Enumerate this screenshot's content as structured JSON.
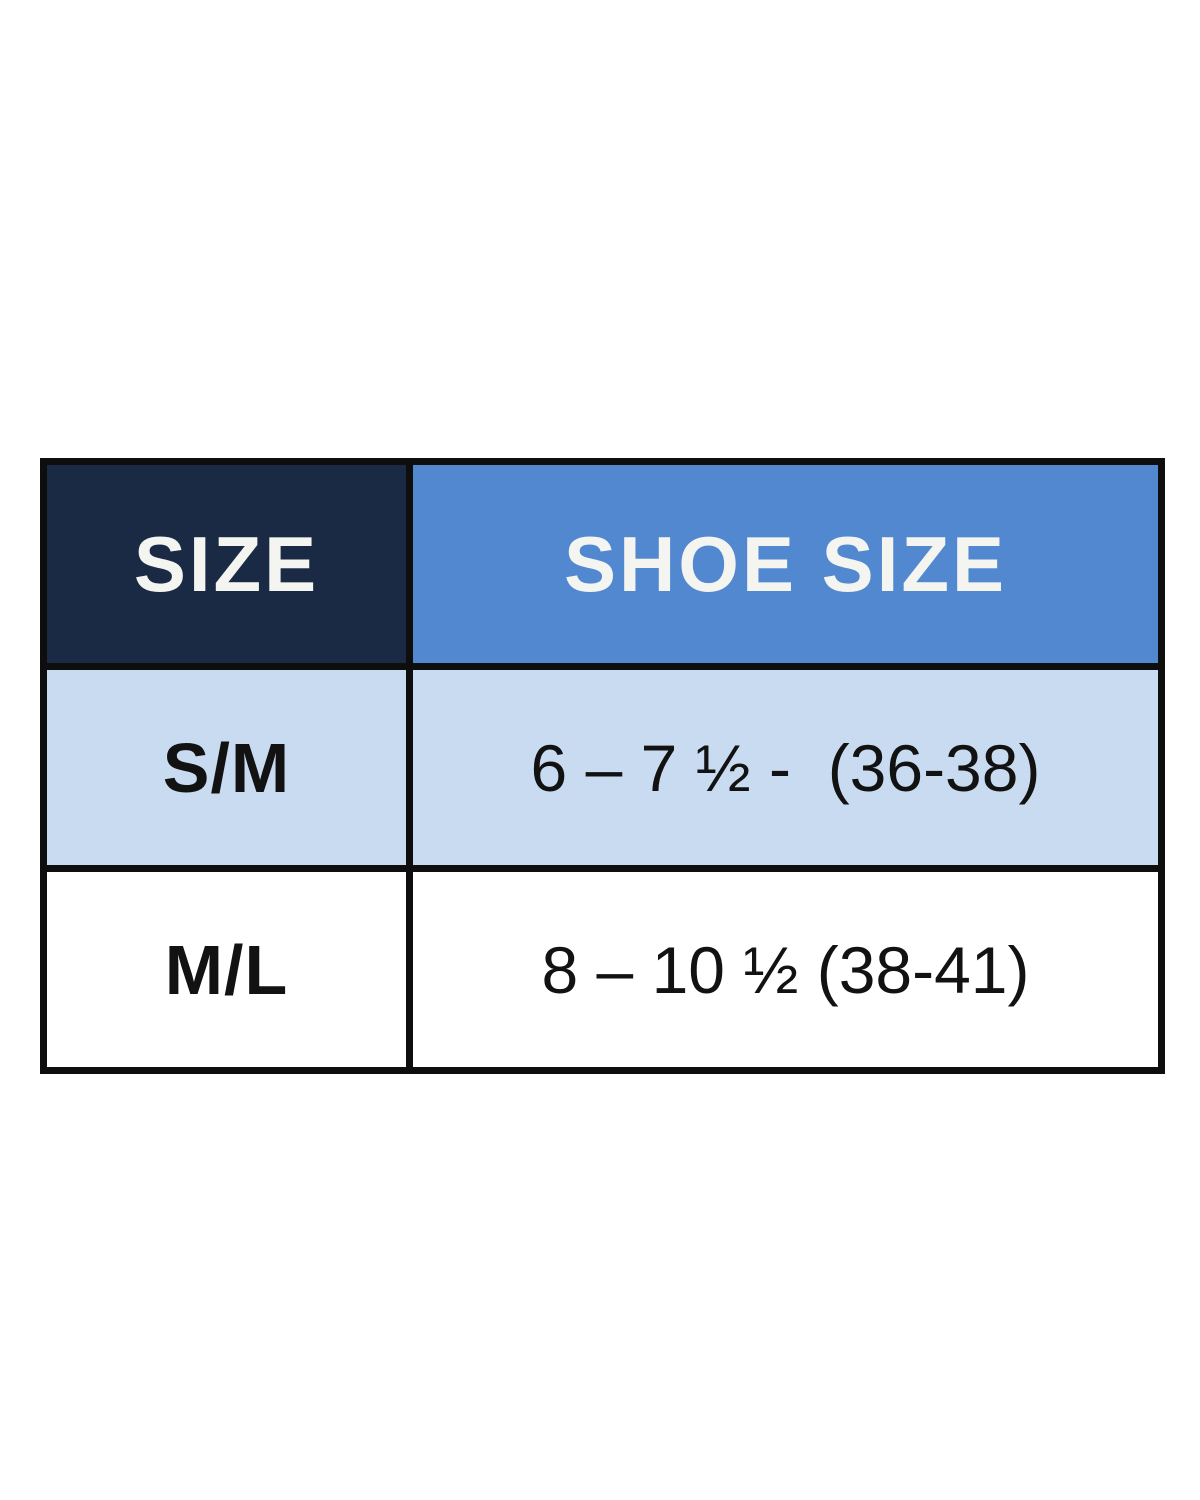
{
  "chart_data": {
    "type": "table",
    "columns": [
      "SIZE",
      "SHOE SIZE"
    ],
    "rows": [
      {
        "size": "S/M",
        "shoe_size": "6 – 7 ½ -  (36-38)"
      },
      {
        "size": "M/L",
        "shoe_size": "8 – 10 ½ (38-41)"
      }
    ]
  },
  "theme": {
    "page_bg": "#ffffff",
    "header_size_bg": "#1b2a44",
    "header_shoe_bg": "#5288cf",
    "row_alt_bg": "#c9dbf1",
    "row_plain_bg": "#ffffff",
    "border_color": "#0e0e0e",
    "header_text_color": "#f4f4f1",
    "cell_text_color": "#121212"
  }
}
